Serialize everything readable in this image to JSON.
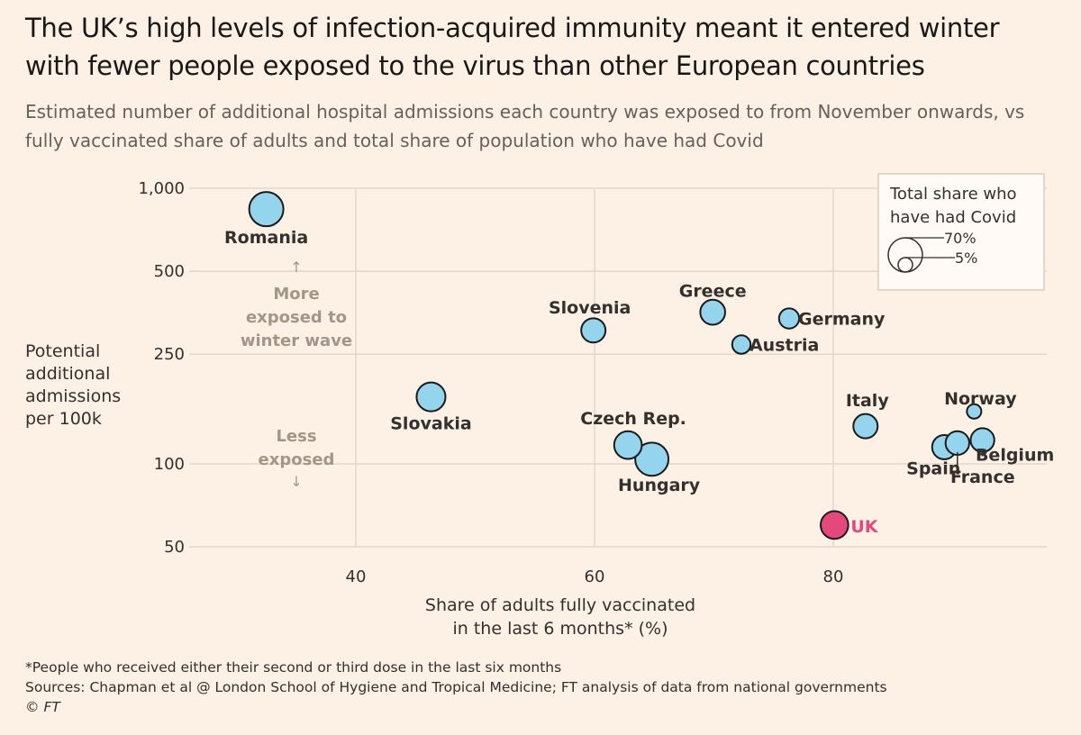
{
  "header": {
    "title": "The UK’s high levels of infection-acquired immunity meant it entered winter with fewer people exposed to the virus than other European countries",
    "subtitle": "Estimated number of additional hospital admissions each country was exposed to from November onwards, vs fully vaccinated share of adults and total share of population who have had Covid"
  },
  "chart_data": {
    "type": "scatter",
    "xlabel_lines": [
      "Share of adults fully vaccinated",
      "in the last 6 months* (%)"
    ],
    "ylabel_lines": [
      "Potential",
      "additional",
      "admissions",
      "per 100k"
    ],
    "x_ticks": [
      40,
      60,
      80
    ],
    "y_ticks": [
      {
        "value": 1000,
        "label": "1,000"
      },
      {
        "value": 500,
        "label": "500"
      },
      {
        "value": 250,
        "label": "250"
      },
      {
        "value": 100,
        "label": "100"
      },
      {
        "value": 50,
        "label": "50"
      }
    ],
    "xlim": [
      28,
      90.5
    ],
    "ylim": [
      45,
      1000
    ],
    "y_scale": "log",
    "grid": true,
    "annotation_up": {
      "arrow": "↑",
      "lines": [
        "More",
        "exposed to",
        "winter wave"
      ]
    },
    "annotation_down": {
      "arrow": "↓",
      "lines": [
        "Less",
        "exposed"
      ]
    },
    "legend": {
      "position": "top-right",
      "title_lines": [
        "Total share who",
        "have had Covid"
      ],
      "size_labels": [
        "70%",
        "5%"
      ]
    },
    "colors": {
      "bubble": "#94d4ec",
      "uk": "#e5487c",
      "stroke": "#1a1a1a",
      "grid": "#e2d7cc"
    },
    "points": [
      {
        "name": "Romania",
        "x": 32.5,
        "y": 840,
        "covid_share": 70
      },
      {
        "name": "Slovakia",
        "x": 46.3,
        "y": 175,
        "covid_share": 45
      },
      {
        "name": "Slovenia",
        "x": 59.9,
        "y": 305,
        "covid_share": 28
      },
      {
        "name": "Greece",
        "x": 69.9,
        "y": 355,
        "covid_share": 30
      },
      {
        "name": "Germany",
        "x": 76.3,
        "y": 337,
        "covid_share": 16
      },
      {
        "name": "Austria",
        "x": 72.3,
        "y": 271,
        "covid_share": 12
      },
      {
        "name": "Czech Rep.",
        "x": 62.8,
        "y": 117,
        "covid_share": 40
      },
      {
        "name": "Hungary",
        "x": 64.8,
        "y": 104,
        "covid_share": 65
      },
      {
        "name": "Italy",
        "x": 82.7,
        "y": 137,
        "covid_share": 28
      },
      {
        "name": "Norway",
        "x": 91.8,
        "y": 155,
        "covid_share": 5
      },
      {
        "name": "Spain",
        "x": 89.3,
        "y": 115,
        "covid_share": 28
      },
      {
        "name": "France",
        "x": 90.4,
        "y": 119,
        "covid_share": 26
      },
      {
        "name": "Belgium",
        "x": 92.5,
        "y": 122,
        "covid_share": 26
      },
      {
        "name": "UK",
        "x": 80.1,
        "y": 60,
        "covid_share": 40,
        "highlight": true
      }
    ]
  },
  "footer": {
    "note": "*People who received either their second or third dose in the last six months",
    "sources": "Sources: Chapman et al @ London School of Hygiene and Tropical Medicine; FT analysis of data from national governments",
    "copyright_symbol": "©",
    "copyright_text": "FT"
  }
}
